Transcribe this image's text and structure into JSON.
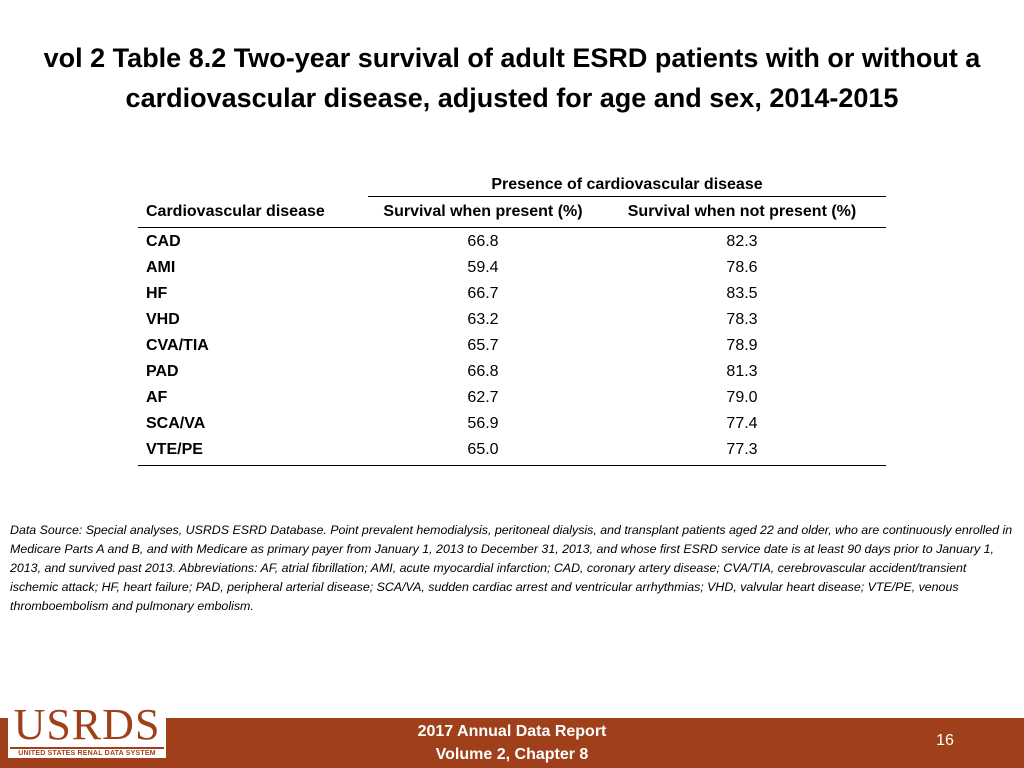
{
  "title": "vol 2 Table 8.2 Two-year survival of adult ESRD patients with or without a cardiovascular disease, adjusted for age and sex, 2014-2015",
  "table": {
    "group_header": "Presence of cardiovascular disease",
    "columns": [
      "Cardiovascular disease",
      "Survival when present (%)",
      "Survival when not present (%)"
    ],
    "rows": [
      {
        "disease": "CAD",
        "present": "66.8",
        "not_present": "82.3"
      },
      {
        "disease": "AMI",
        "present": "59.4",
        "not_present": "78.6"
      },
      {
        "disease": "HF",
        "present": "66.7",
        "not_present": "83.5"
      },
      {
        "disease": "VHD",
        "present": "63.2",
        "not_present": "78.3"
      },
      {
        "disease": "CVA/TIA",
        "present": "65.7",
        "not_present": "78.9"
      },
      {
        "disease": "PAD",
        "present": "66.8",
        "not_present": "81.3"
      },
      {
        "disease": "AF",
        "present": "62.7",
        "not_present": "79.0"
      },
      {
        "disease": "SCA/VA",
        "present": "56.9",
        "not_present": "77.4"
      },
      {
        "disease": "VTE/PE",
        "present": "65.0",
        "not_present": "77.3"
      }
    ]
  },
  "footnote": "Data Source: Special analyses, USRDS ESRD Database. Point prevalent hemodialysis, peritoneal dialysis, and transplant patients aged 22 and older, who are continuously enrolled in Medicare Parts A and B, and with Medicare as primary payer from January 1, 2013 to December 31, 2013, and whose first ESRD service date is at least 90 days prior to January 1, 2013, and survived past 2013. Abbreviations: AF, atrial fibrillation; AMI, acute myocardial infarction; CAD, coronary artery disease; CVA/TIA, cerebrovascular accident/transient ischemic attack; HF, heart failure; PAD, peripheral arterial disease; SCA/VA, sudden cardiac arrest and ventricular arrhythmias; VHD, valvular heart disease; VTE/PE, venous thromboembolism and pulmonary embolism.",
  "footer": {
    "logo_text": "USRDS",
    "logo_subtext": "UNITED STATES RENAL DATA SYSTEM",
    "report_line1": "2017 Annual Data Report",
    "report_line2": "Volume 2, Chapter 8",
    "page_number": "16"
  },
  "colors": {
    "accent": "#a0401a",
    "text": "#000000",
    "background": "#ffffff"
  }
}
